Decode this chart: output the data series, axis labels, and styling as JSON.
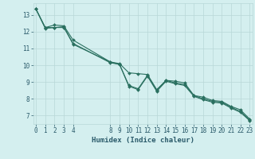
{
  "xlabel": "Humidex (Indice chaleur)",
  "bg_color": "#d4efef",
  "line_color": "#2a7060",
  "grid_color": "#b8d8d8",
  "ylim": [
    6.5,
    13.7
  ],
  "xlim": [
    -0.3,
    23.3
  ],
  "yticks": [
    7,
    8,
    9,
    10,
    11,
    12,
    13
  ],
  "xticks": [
    0,
    1,
    2,
    3,
    4,
    8,
    9,
    10,
    11,
    12,
    13,
    14,
    15,
    16,
    17,
    18,
    19,
    20,
    21,
    22,
    23
  ],
  "line1_x": [
    0,
    1,
    2,
    3,
    4,
    8,
    9,
    10,
    11,
    12,
    13,
    14,
    15,
    16,
    17,
    18,
    19,
    20,
    21,
    22,
    23
  ],
  "line1_y": [
    13.35,
    12.25,
    12.4,
    12.35,
    11.5,
    10.2,
    10.1,
    9.55,
    9.5,
    9.45,
    8.55,
    9.1,
    9.05,
    8.95,
    8.2,
    8.1,
    7.9,
    7.85,
    7.55,
    7.35,
    6.8
  ],
  "line2_x": [
    0,
    1,
    2,
    3,
    4,
    8,
    9,
    10,
    11,
    12,
    13,
    14,
    15,
    16,
    17,
    18,
    19,
    20,
    21,
    22,
    23
  ],
  "line2_y": [
    13.35,
    12.25,
    12.25,
    12.3,
    11.25,
    10.2,
    10.05,
    8.8,
    8.6,
    9.4,
    8.5,
    9.1,
    8.95,
    8.85,
    8.2,
    8.0,
    7.85,
    7.8,
    7.5,
    7.25,
    6.75
  ],
  "line3_x": [
    0,
    1,
    2,
    3,
    4,
    8,
    9,
    10,
    11,
    12,
    13,
    14,
    15,
    16,
    17,
    18,
    19,
    20,
    21,
    22,
    23
  ],
  "line3_y": [
    13.35,
    12.2,
    12.25,
    12.25,
    11.3,
    10.15,
    10.05,
    8.75,
    8.55,
    9.35,
    8.45,
    9.05,
    8.9,
    8.8,
    8.15,
    7.95,
    7.8,
    7.75,
    7.45,
    7.2,
    6.7
  ],
  "marker": "D",
  "marker_size": 2.0,
  "line_width": 0.8,
  "font_color": "#2a5a6a",
  "tick_fontsize": 5.5,
  "label_fontsize": 6.5
}
